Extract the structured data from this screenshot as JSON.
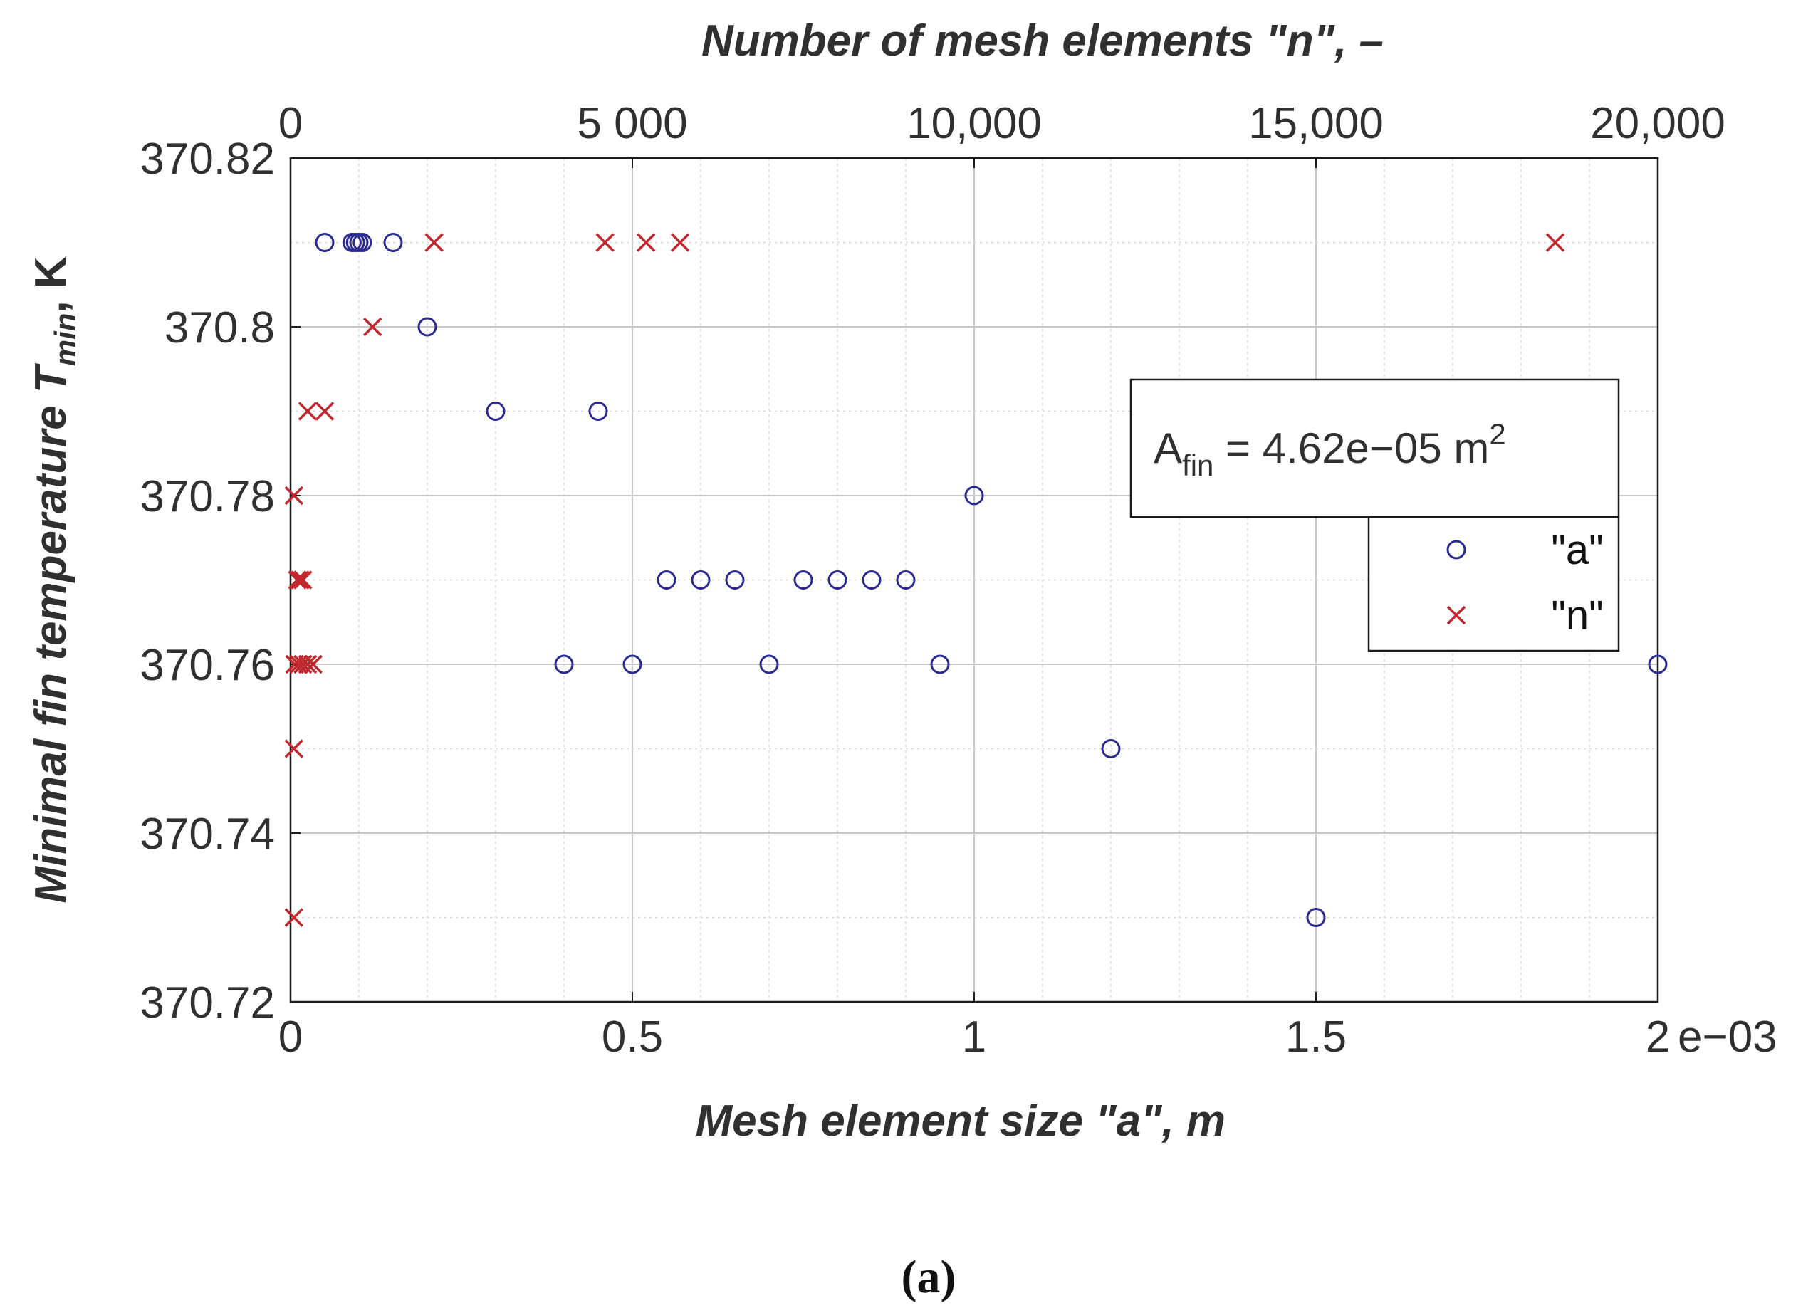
{
  "chart_data": {
    "type": "scatter",
    "title": "",
    "caption": "(a)",
    "ylabel": "Minimal fin temperature T",
    "ylabel_sub": "min",
    "ylabel_unit": ", K",
    "xlabel": "Mesh element size \"a\", m",
    "x2label": "Number of mesh elements \"n\", –",
    "x_exponent_label": "e−03",
    "xlim": [
      0,
      2
    ],
    "x2lim": [
      0,
      20000
    ],
    "ylim": [
      370.72,
      370.82
    ],
    "grid": true,
    "minor_grid": true,
    "x_ticks": [
      {
        "value": 0,
        "label": "0"
      },
      {
        "value": 0.5,
        "label": "0.5"
      },
      {
        "value": 1,
        "label": "1"
      },
      {
        "value": 1.5,
        "label": "1.5"
      },
      {
        "value": 2,
        "label": "2"
      }
    ],
    "x2_ticks": [
      {
        "value": 0,
        "label": "0"
      },
      {
        "value": 5000,
        "label": "5 000"
      },
      {
        "value": 10000,
        "label": "10,000"
      },
      {
        "value": 15000,
        "label": "15,000"
      },
      {
        "value": 20000,
        "label": "20,000"
      }
    ],
    "y_ticks": [
      {
        "value": 370.72,
        "label": "370.72"
      },
      {
        "value": 370.74,
        "label": "370.74"
      },
      {
        "value": 370.76,
        "label": "370.76"
      },
      {
        "value": 370.78,
        "label": "370.78"
      },
      {
        "value": 370.8,
        "label": "370.8"
      },
      {
        "value": 370.82,
        "label": "370.82"
      }
    ],
    "annotation": {
      "text_main": "A",
      "text_sub": "fin",
      "text_value": " = 4.62e−05 m",
      "text_sup": "2"
    },
    "legend_position": "right",
    "series": [
      {
        "name": "\"a\"",
        "axis": "bottom",
        "marker": "circle",
        "color": "#2b2b8f",
        "points": [
          [
            0.05,
            370.81
          ],
          [
            0.09,
            370.81
          ],
          [
            0.095,
            370.81
          ],
          [
            0.1,
            370.81
          ],
          [
            0.105,
            370.81
          ],
          [
            0.15,
            370.81
          ],
          [
            0.2,
            370.8
          ],
          [
            0.3,
            370.79
          ],
          [
            0.45,
            370.79
          ],
          [
            1.0,
            370.78
          ],
          [
            0.55,
            370.77
          ],
          [
            0.6,
            370.77
          ],
          [
            0.65,
            370.77
          ],
          [
            0.75,
            370.77
          ],
          [
            0.8,
            370.77
          ],
          [
            0.85,
            370.77
          ],
          [
            0.9,
            370.77
          ],
          [
            0.4,
            370.76
          ],
          [
            0.5,
            370.76
          ],
          [
            0.7,
            370.76
          ],
          [
            0.95,
            370.76
          ],
          [
            2.0,
            370.76
          ],
          [
            1.2,
            370.75
          ],
          [
            1.5,
            370.73
          ]
        ]
      },
      {
        "name": "\"n\"",
        "axis": "top",
        "marker": "x",
        "color": "#c0282d",
        "points": [
          [
            2100,
            370.81
          ],
          [
            4600,
            370.81
          ],
          [
            5200,
            370.81
          ],
          [
            5700,
            370.81
          ],
          [
            18500,
            370.81
          ],
          [
            1200,
            370.8
          ],
          [
            250,
            370.79
          ],
          [
            500,
            370.79
          ],
          [
            50,
            370.78
          ],
          [
            100,
            370.77
          ],
          [
            140,
            370.77
          ],
          [
            180,
            370.77
          ],
          [
            60,
            370.76
          ],
          [
            120,
            370.76
          ],
          [
            180,
            370.76
          ],
          [
            250,
            370.76
          ],
          [
            330,
            370.76
          ],
          [
            50,
            370.75
          ],
          [
            50,
            370.73
          ]
        ]
      }
    ]
  }
}
